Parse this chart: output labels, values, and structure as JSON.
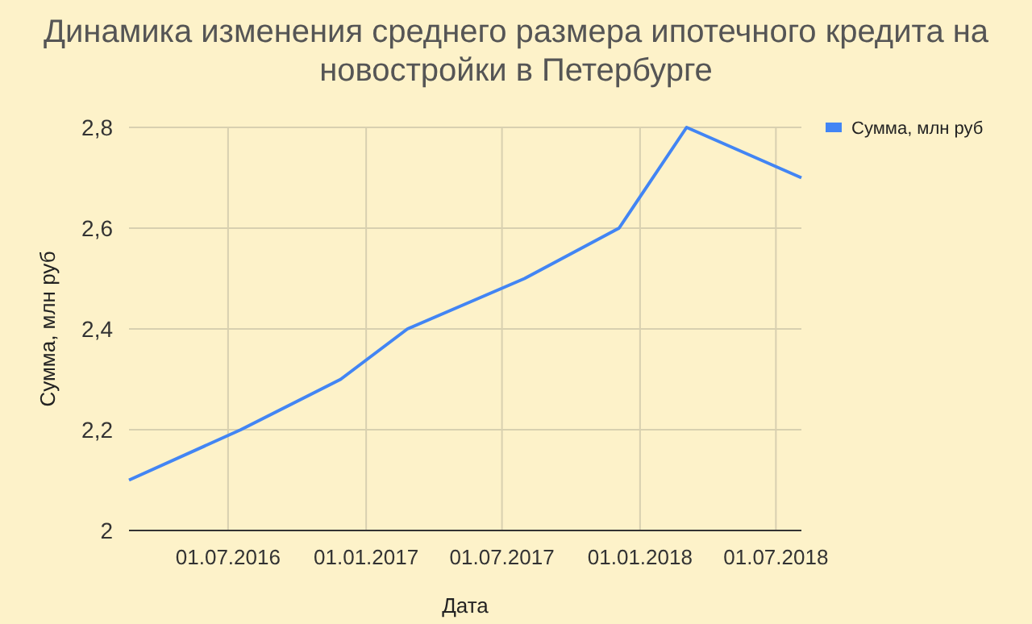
{
  "chart_data": {
    "type": "line",
    "title": "Динамика изменения среднего размера ипотечного кредита на новостройки в Петербурге",
    "xlabel": "Дата",
    "ylabel": "Сумма, млн руб",
    "x": [
      "2016-02-20",
      "2016-07-18",
      "2016-11-28",
      "2017-02-25",
      "2017-07-31",
      "2017-12-04",
      "2018-03-04",
      "2018-08-04"
    ],
    "series": [
      {
        "name": "Сумма, млн руб",
        "color": "#4285f4",
        "values": [
          2.1,
          2.2,
          2.3,
          2.4,
          2.5,
          2.6,
          2.8,
          2.7
        ]
      }
    ],
    "xlim": [
      "2016-02-20",
      "2018-08-04"
    ],
    "xticks": [
      {
        "value": "2016-07-01",
        "label": "01.07.2016"
      },
      {
        "value": "2017-01-01",
        "label": "01.01.2017"
      },
      {
        "value": "2017-07-01",
        "label": "01.07.2017"
      },
      {
        "value": "2018-01-01",
        "label": "01.01.2018"
      },
      {
        "value": "2018-07-01",
        "label": "01.07.2018"
      }
    ],
    "ylim": [
      2,
      2.8
    ],
    "yticks": [
      2,
      {
        "value": 2.2,
        "label": "2,2"
      },
      {
        "value": 2.4,
        "label": "2,4"
      },
      {
        "value": 2.6,
        "label": "2,6"
      },
      {
        "value": 2.8,
        "label": "2,8"
      }
    ],
    "grid": true,
    "legend": "top right",
    "marker": "none",
    "line_style": "solid"
  }
}
